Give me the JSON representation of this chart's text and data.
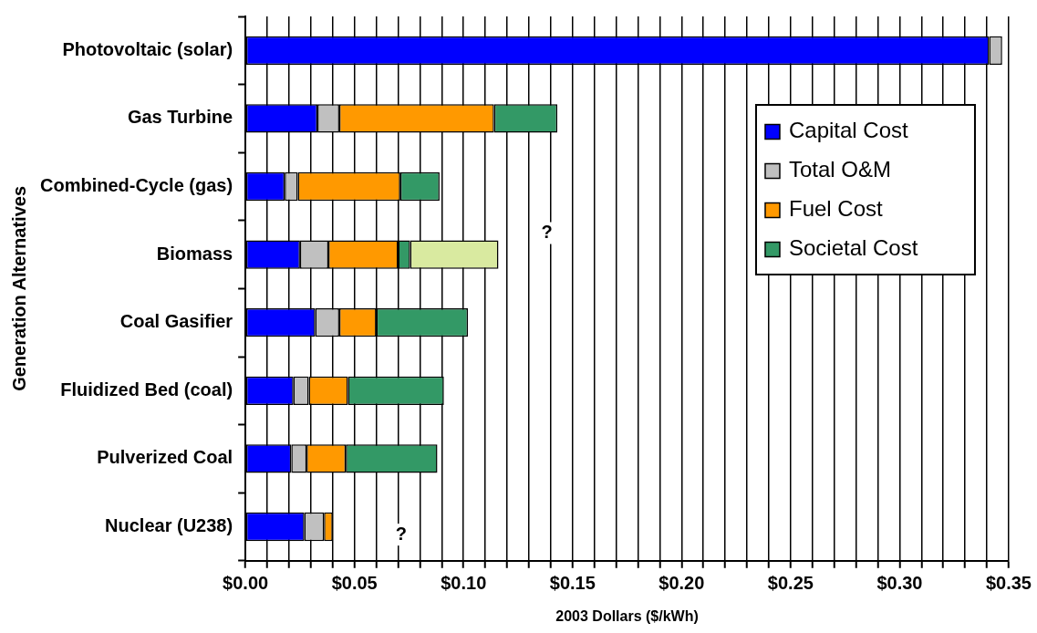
{
  "chart_data": {
    "type": "bar",
    "orientation": "horizontal",
    "stacked": true,
    "xlabel": "2003 Dollars ($/kWh)",
    "ylabel": "Generation Alternatives",
    "categories": [
      "Photovoltaic (solar)",
      "Gas Turbine",
      "Combined-Cycle (gas)",
      "Biomass",
      "Coal Gasifier",
      "Fluidized Bed (coal)",
      "Pulverized Coal",
      "Nuclear (U238)"
    ],
    "series": [
      {
        "name": "Capital Cost",
        "color": "#0000ff",
        "values": [
          0.341,
          0.033,
          0.018,
          0.025,
          0.032,
          0.022,
          0.021,
          0.027
        ]
      },
      {
        "name": "Total O&M",
        "color": "#c0c0c0",
        "values": [
          0.006,
          0.01,
          0.006,
          0.013,
          0.011,
          0.007,
          0.007,
          0.009
        ]
      },
      {
        "name": "Fuel Cost",
        "color": "#ff9900",
        "values": [
          null,
          0.071,
          0.047,
          0.032,
          0.017,
          0.018,
          0.018,
          0.004
        ]
      },
      {
        "name": "Societal Cost",
        "color": "#339966",
        "values": [
          null,
          0.029,
          0.018,
          0.0055,
          0.042,
          0.044,
          0.042,
          null
        ]
      },
      {
        "color": "#d9eaa0",
        "values": [
          null,
          null,
          null,
          0.0405,
          null,
          null,
          null,
          null
        ]
      }
    ],
    "xlim": [
      0,
      0.35
    ],
    "xticks": [
      {
        "value": 0,
        "label": "$0.00"
      },
      {
        "value": 0.01,
        "label": null
      },
      {
        "value": 0.02,
        "label": null
      },
      {
        "value": 0.03,
        "label": null
      },
      {
        "value": 0.04,
        "label": null
      },
      {
        "value": 0.05,
        "label": "$0.05"
      },
      {
        "value": 0.06,
        "label": null
      },
      {
        "value": 0.07,
        "label": null
      },
      {
        "value": 0.08,
        "label": null
      },
      {
        "value": 0.09,
        "label": null
      },
      {
        "value": 0.1,
        "label": "$0.10"
      },
      {
        "value": 0.11,
        "label": null
      },
      {
        "value": 0.12,
        "label": null
      },
      {
        "value": 0.13,
        "label": null
      },
      {
        "value": 0.14,
        "label": null
      },
      {
        "value": 0.15,
        "label": "$0.15"
      },
      {
        "value": 0.16,
        "label": null
      },
      {
        "value": 0.17,
        "label": null
      },
      {
        "value": 0.18,
        "label": null
      },
      {
        "value": 0.19,
        "label": null
      },
      {
        "value": 0.2,
        "label": "$0.20"
      },
      {
        "value": 0.21,
        "label": null
      },
      {
        "value": 0.22,
        "label": null
      },
      {
        "value": 0.23,
        "label": null
      },
      {
        "value": 0.24,
        "label": null
      },
      {
        "value": 0.25,
        "label": "$0.25"
      },
      {
        "value": 0.26,
        "label": null
      },
      {
        "value": 0.27,
        "label": null
      },
      {
        "value": 0.28,
        "label": null
      },
      {
        "value": 0.29,
        "label": null
      },
      {
        "value": 0.3,
        "label": "$0.30"
      },
      {
        "value": 0.31,
        "label": null
      },
      {
        "value": 0.32,
        "label": null
      },
      {
        "value": 0.33,
        "label": null
      },
      {
        "value": 0.34,
        "label": null
      },
      {
        "value": 0.35,
        "label": "$0.35"
      }
    ],
    "grid": "x",
    "legend": "top right",
    "annotations": [
      "?",
      "?"
    ]
  }
}
